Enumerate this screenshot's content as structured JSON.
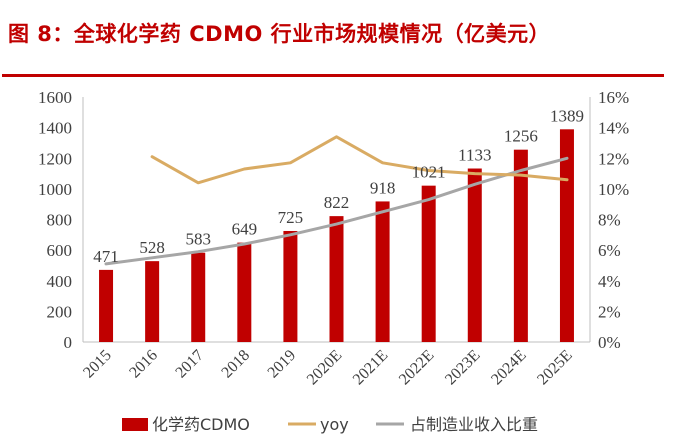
{
  "figure": {
    "title": "图 8：全球化学药 CDMO 行业市场规模情况（亿美元）"
  },
  "colors": {
    "title": "#c00000",
    "bars": "#c00000",
    "yoy": "#d9ab63",
    "share": "#a6a6a6"
  },
  "chart_data": {
    "type": "bar",
    "categories": [
      "2015",
      "2016",
      "2017",
      "2018",
      "2019",
      "2020E",
      "2021E",
      "2022E",
      "2023E",
      "2024E",
      "2025E"
    ],
    "series": [
      {
        "name": "化学药CDMO",
        "type": "bar",
        "axis": "left",
        "values": [
          471,
          528,
          583,
          649,
          725,
          822,
          918,
          1021,
          1133,
          1256,
          1389
        ],
        "data_labels": [
          "471",
          "528",
          "583",
          "649",
          "725",
          "822",
          "918",
          "1021",
          "1133",
          "1256",
          "1389"
        ]
      },
      {
        "name": "yoy",
        "type": "line",
        "axis": "right",
        "unit": "%",
        "values": [
          null,
          12.1,
          10.4,
          11.3,
          11.7,
          13.4,
          11.7,
          11.2,
          11.0,
          10.9,
          10.6
        ]
      },
      {
        "name": "占制造业收入比重",
        "type": "line",
        "axis": "right",
        "unit": "%",
        "values": [
          5.1,
          5.5,
          5.9,
          6.4,
          7.0,
          7.7,
          8.5,
          9.3,
          10.3,
          11.2,
          12.0
        ]
      }
    ],
    "y_left": {
      "ylim": [
        0,
        1600
      ],
      "ticks": [
        "0",
        "200",
        "400",
        "600",
        "800",
        "1000",
        "1200",
        "1400",
        "1600"
      ]
    },
    "y_right": {
      "ylim": [
        0,
        16
      ],
      "ticks": [
        "0%",
        "2%",
        "4%",
        "6%",
        "8%",
        "10%",
        "12%",
        "14%",
        "16%"
      ]
    },
    "xlabel": "",
    "ylabel": "",
    "grid": false,
    "legend": "bottom"
  }
}
